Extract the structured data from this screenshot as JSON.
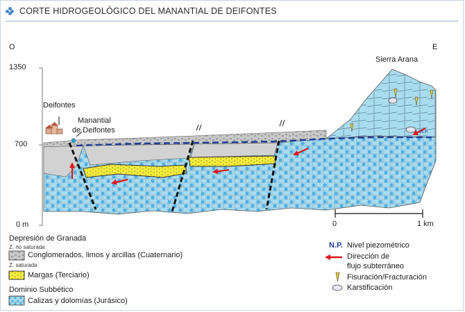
{
  "title": "CORTE HIDROGEOLÓGICO DEL MANANTIAL DE DEIFONTES",
  "axis": {
    "west": "O",
    "east": "E",
    "y_top": "1350",
    "y_mid": "700",
    "y_bottom": "0 m"
  },
  "places": {
    "deifontes": "Deifontes",
    "spring_line1": "Manantial",
    "spring_line2": "de Deifontes",
    "sierra": "Sierra Arana",
    "np_tag": "N.P."
  },
  "scale": {
    "start": "0",
    "end": "1 km"
  },
  "legend": {
    "group1": "Depresión de Granada",
    "unsat": "Z. no saturada",
    "sat": "Z. saturada",
    "conglomerates": "Conglomerados, limos y arcillas (Cuaternario)",
    "marls": "Margas (Terciario)",
    "group2": "Dominio Subbético",
    "limestones": "Calizas y dolomías (Jurásico)",
    "np_symbol": "N.P.",
    "np_label": "Nivel piezométrico",
    "flow_line1": "Dirección de",
    "flow_line2": "flujo subterráneo",
    "fissure": "Fisuración/Fracturación",
    "karst": "Karstificación"
  },
  "colors": {
    "limestone": "#a9dcef",
    "limestone_dots": "#4fb0e3",
    "marl": "#f4ec3a",
    "conglomerate": "#c7c7c7",
    "flow_arrow": "#e0141c",
    "water_table": "#1f3d95",
    "accent": "#4a89c8"
  }
}
